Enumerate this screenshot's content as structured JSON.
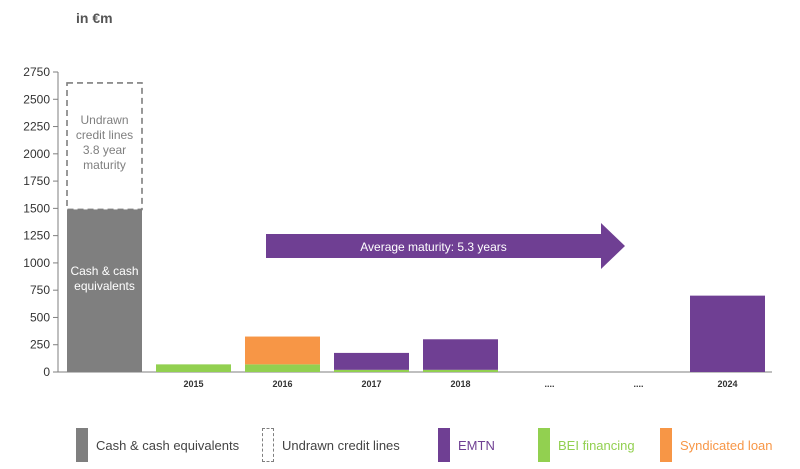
{
  "unit_label": "in €m",
  "chart_data": {
    "type": "bar",
    "stacked": true,
    "categories": [
      "",
      "2015",
      "2016",
      "2017",
      "2018",
      "....",
      "....",
      "2024"
    ],
    "ylim": [
      0,
      2750
    ],
    "yticks": [
      0,
      250,
      500,
      750,
      1000,
      1250,
      1500,
      1750,
      2000,
      2250,
      2500,
      2750
    ],
    "grid": false,
    "legend_position": "bottom",
    "series": [
      {
        "name": "Cash & cash equivalents",
        "color": "#7f7f7f",
        "values": [
          1490,
          0,
          0,
          0,
          0,
          0,
          0,
          0
        ]
      },
      {
        "name": "Undrawn credit lines",
        "color": "#7f7f7f",
        "style": "dashed-outline",
        "values": [
          1160,
          0,
          0,
          0,
          0,
          0,
          0,
          0
        ]
      },
      {
        "name": "EMTN",
        "color": "#6f3f93",
        "values": [
          0,
          0,
          0,
          155,
          280,
          0,
          0,
          700
        ]
      },
      {
        "name": "BEI financing",
        "color": "#92d050",
        "values": [
          0,
          70,
          70,
          20,
          20,
          0,
          0,
          0
        ]
      },
      {
        "name": "Syndicated loan",
        "color": "#f79646",
        "values": [
          0,
          0,
          255,
          0,
          0,
          0,
          0,
          0
        ]
      }
    ],
    "annotations": {
      "undrawn_text": [
        "Undrawn",
        "credit lines",
        "3.8 year",
        "maturity"
      ],
      "cash_text": [
        "Cash & cash",
        "equivalents"
      ],
      "arrow_text": "Average maturity: 5.3 years",
      "arrow_color": "#6f3f93"
    }
  }
}
